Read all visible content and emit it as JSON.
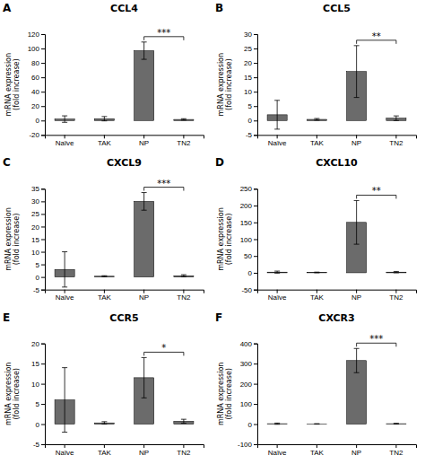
{
  "chart_data": [
    {
      "type": "bar",
      "panel_label": "A",
      "title": "CCL4",
      "ylabel": "mRNA expression\n(fold increase)",
      "categories": [
        "Naïve",
        "TAK",
        "NP",
        "TN2"
      ],
      "values": [
        2.0,
        2.5,
        97.0,
        1.5
      ],
      "errors": [
        4.5,
        3.0,
        12.0,
        1.0
      ],
      "color": "#6b6b6b",
      "ylim": [
        -20,
        120
      ],
      "yticks": [
        -20,
        0,
        20,
        40,
        60,
        80,
        100,
        120
      ],
      "annotations": [
        {
          "text": "***",
          "from": "NP",
          "to": "TN2"
        }
      ]
    },
    {
      "type": "bar",
      "panel_label": "B",
      "title": "CCL5",
      "ylabel": "mRNA expression\n(fold increase)",
      "categories": [
        "Naïve",
        "TAK",
        "NP",
        "TN2"
      ],
      "values": [
        2.0,
        0.4,
        17.0,
        0.8
      ],
      "errors": [
        5.0,
        0.3,
        9.0,
        0.8
      ],
      "color": "#6b6b6b",
      "ylim": [
        -5,
        30
      ],
      "yticks": [
        -5,
        0,
        5,
        10,
        15,
        20,
        25,
        30
      ],
      "annotations": [
        {
          "text": "**",
          "from": "NP",
          "to": "TN2"
        }
      ]
    },
    {
      "type": "bar",
      "panel_label": "C",
      "title": "CXCL9",
      "ylabel": "mRNA expression\n(fold increase)",
      "categories": [
        "Naïve",
        "TAK",
        "NP",
        "TN2"
      ],
      "values": [
        3.0,
        0.3,
        30.0,
        0.5
      ],
      "errors": [
        7.0,
        0.2,
        3.5,
        0.4
      ],
      "color": "#6b6b6b",
      "ylim": [
        -5,
        35
      ],
      "yticks": [
        -5,
        0,
        5,
        10,
        15,
        20,
        25,
        30,
        35
      ],
      "annotations": [
        {
          "text": "***",
          "from": "NP",
          "to": "TN2"
        }
      ]
    },
    {
      "type": "bar",
      "panel_label": "D",
      "title": "CXCL10",
      "ylabel": "mRNA expression\n(fold increase)",
      "categories": [
        "Naïve",
        "TAK",
        "NP",
        "TN2"
      ],
      "values": [
        2.0,
        1.0,
        150.0,
        2.0
      ],
      "errors": [
        3.0,
        1.0,
        65.0,
        2.0
      ],
      "color": "#6b6b6b",
      "ylim": [
        -50,
        250
      ],
      "yticks": [
        -50,
        0,
        50,
        100,
        150,
        200,
        250
      ],
      "annotations": [
        {
          "text": "**",
          "from": "NP",
          "to": "TN2"
        }
      ]
    },
    {
      "type": "bar",
      "panel_label": "E",
      "title": "CCR5",
      "ylabel": "mRNA expression\n(fold increase)",
      "categories": [
        "Naïve",
        "TAK",
        "NP",
        "TN2"
      ],
      "values": [
        6.0,
        0.3,
        11.5,
        0.7
      ],
      "errors": [
        8.0,
        0.3,
        5.0,
        0.5
      ],
      "color": "#6b6b6b",
      "ylim": [
        -5,
        20
      ],
      "yticks": [
        -5,
        0,
        5,
        10,
        15,
        20
      ],
      "annotations": [
        {
          "text": "*",
          "from": "NP",
          "to": "TN2"
        }
      ]
    },
    {
      "type": "bar",
      "panel_label": "F",
      "title": "CXCR3",
      "ylabel": "mRNA expression\n(fold increase)",
      "categories": [
        "Naïve",
        "TAK",
        "NP",
        "TN2"
      ],
      "values": [
        2.0,
        1.0,
        315.0,
        2.0
      ],
      "errors": [
        3.0,
        1.0,
        60.0,
        2.0
      ],
      "color": "#6b6b6b",
      "ylim": [
        -100,
        400
      ],
      "yticks": [
        -100,
        0,
        100,
        200,
        300,
        400
      ],
      "annotations": [
        {
          "text": "***",
          "from": "NP",
          "to": "TN2"
        }
      ]
    }
  ]
}
